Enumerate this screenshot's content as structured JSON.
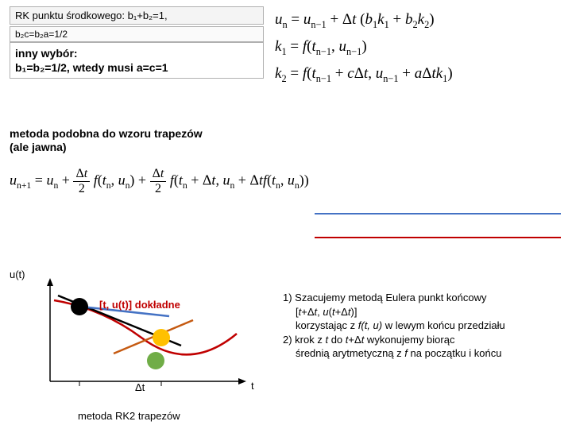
{
  "topLeft": {
    "rkHeader": "RK punktu środkowego: b₁+b₂=1,",
    "rkSub": "b₂c=b₂a=1/2",
    "innyLine1": "inny wybór:",
    "innyLine2": "b₁=b₂=1/2, wtedy musi a=c=1"
  },
  "metoda": {
    "line1": "metoda podobna do wzoru trapezów",
    "line2": "(ale jawna)"
  },
  "equations": {
    "un": "uₙ = uₙ₋₁ + Δt (b₁k₁ + b₂k₂)",
    "k1": "k₁ = f(tₙ₋₁, uₙ₋₁)",
    "k2": "k₂ = f(tₙ₋₁ + cΔt, uₙ₋₁ + aΔtk₁)",
    "wide_prefix": "uₙ₊₁ = uₙ + ",
    "frac": "Δt/2",
    "wide_mid1": " f(tₙ, uₙ) + ",
    "wide_mid2": " f(tₙ + Δt, uₙ + Δt f(tₙ, uₙ))"
  },
  "lines": {
    "color1": "#4472c4",
    "color2": "#c00000",
    "top1": 268,
    "top2": 298
  },
  "chart": {
    "ut": "u(t)",
    "t": "t",
    "dt": "Δt",
    "exact": "[t, u(t)] dokładne",
    "rk2": "metoda RK2 trapezów",
    "axisColor": "#000000",
    "exactCurveColor": "#c00000",
    "tangent1Color": "#000000",
    "tangent2Color": "#c55a11",
    "midLineColor": "#4472c4",
    "point1Color": "#000000",
    "point2Color": "#ffc000",
    "point3Color": "#70ad47"
  },
  "steps": {
    "s1a": "1) Szacujemy metodą Eulera punkt końcowy",
    "s1b": "[t+Δt, u(t+Δt)]",
    "s1c": "korzystając z f(t, u) w lewym końcu przedziału",
    "s2a": "2) krok z t do t+Δt wykonujemy biorąc",
    "s2b": "średnią arytmetyczną z f na początku i końcu"
  }
}
